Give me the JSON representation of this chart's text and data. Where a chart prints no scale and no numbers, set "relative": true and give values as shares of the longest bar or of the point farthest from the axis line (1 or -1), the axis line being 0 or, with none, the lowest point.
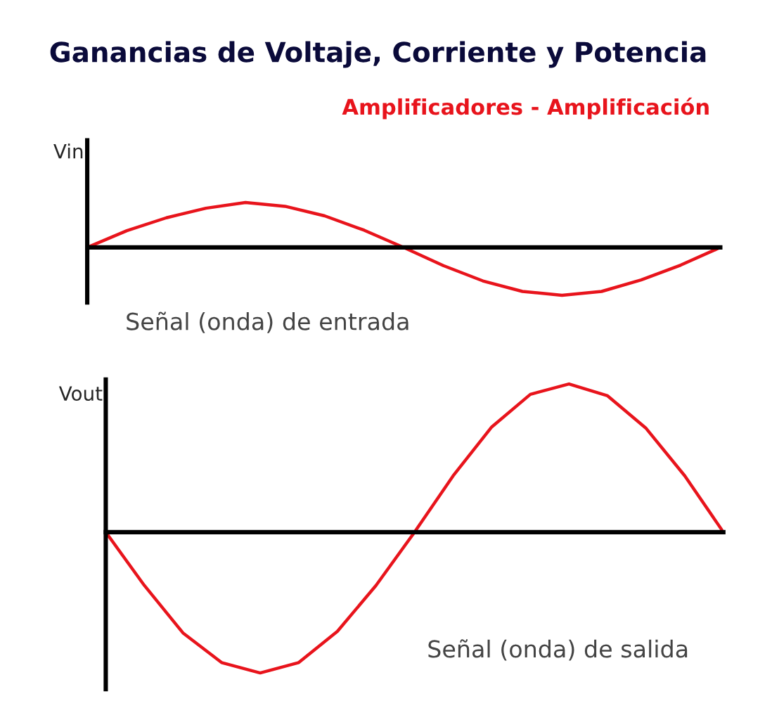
{
  "chart_data": [
    {
      "type": "line",
      "title": "Ganancias de Voltaje, Corriente y Potencia",
      "subtitle": "Amplificadores - Amplificación",
      "ylabel": "Vin",
      "annotations": [
        "Señal (onda) de entrada"
      ],
      "relative": true,
      "categories": [
        null,
        null,
        null,
        null,
        null,
        null,
        null,
        null,
        null,
        null,
        null,
        null,
        null,
        null,
        null,
        null,
        null
      ],
      "series": [
        {
          "color": "#e8141c",
          "values": [
            0,
            0.35,
            0.62,
            0.82,
            0.94,
            0.86,
            0.66,
            0.36,
            0,
            -0.38,
            -0.7,
            -0.92,
            -1,
            -0.92,
            -0.68,
            -0.37,
            0
          ]
        }
      ]
    },
    {
      "type": "line",
      "ylabel": "Vout",
      "annotations": [
        "Señal (onda) de salida"
      ],
      "relative": true,
      "categories": [
        null,
        null,
        null,
        null,
        null,
        null,
        null,
        null,
        null,
        null,
        null,
        null,
        null,
        null,
        null,
        null,
        null
      ],
      "series": [
        {
          "color": "#e8141c",
          "values": [
            0,
            -0.36,
            -0.68,
            -0.88,
            -0.95,
            -0.88,
            -0.67,
            -0.36,
            0,
            0.38,
            0.71,
            0.93,
            1,
            0.92,
            0.7,
            0.38,
            0
          ]
        }
      ]
    }
  ]
}
